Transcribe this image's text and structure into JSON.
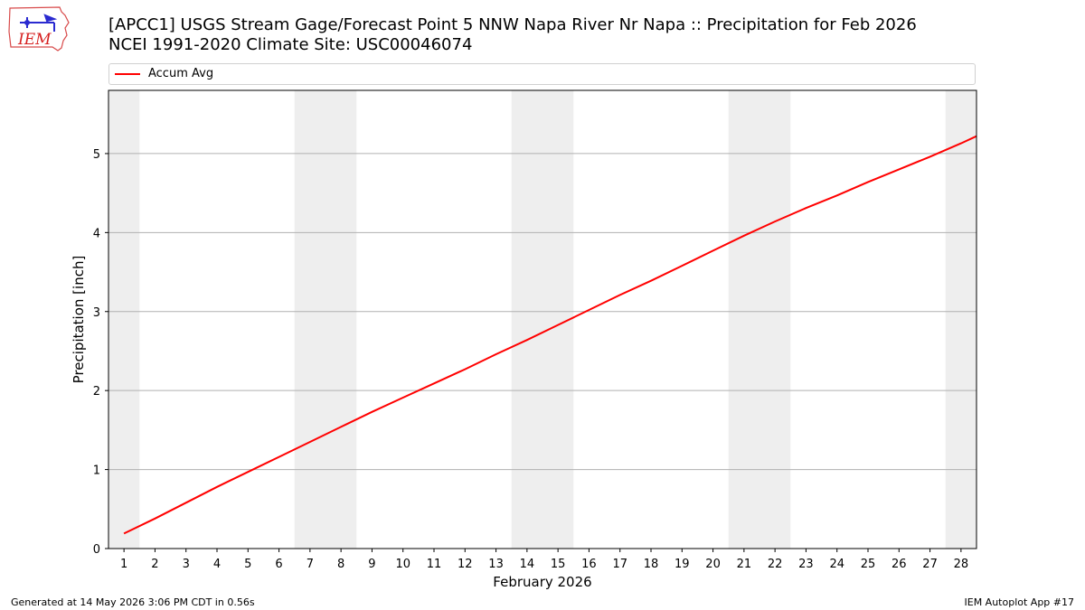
{
  "logo": {
    "text": "IEM",
    "icon": "iowa-state-weather-station-logo-icon"
  },
  "title_line1": "[APCC1] USGS Stream Gage/Forecast Point 5 NNW Napa River Nr Napa :: Precipitation for Feb 2026",
  "title_line2": "NCEI 1991-2020 Climate Site: USC00046074",
  "footer": {
    "left": "Generated at 14 May 2026 3:06 PM CDT in 0.56s",
    "right": "IEM Autoplot App #17"
  },
  "colors": {
    "series": "#ff0000",
    "weekend_band": "#eeeeee",
    "grid": "#b0b0b0"
  },
  "chart_data": {
    "type": "line",
    "xlabel": "February 2026",
    "ylabel": "Precipitation [inch]",
    "xlim": [
      0.5,
      28.5
    ],
    "ylim": [
      0,
      5.8
    ],
    "x_ticks": [
      1,
      2,
      3,
      4,
      5,
      6,
      7,
      8,
      9,
      10,
      11,
      12,
      13,
      14,
      15,
      16,
      17,
      18,
      19,
      20,
      21,
      22,
      23,
      24,
      25,
      26,
      27,
      28
    ],
    "y_ticks": [
      0,
      1,
      2,
      3,
      4,
      5
    ],
    "grid": "horizontal",
    "legend": "top",
    "weekend_bands": [
      [
        0.5,
        1.5
      ],
      [
        6.5,
        8.5
      ],
      [
        13.5,
        15.5
      ],
      [
        20.5,
        22.5
      ],
      [
        27.5,
        28.5
      ]
    ],
    "series": [
      {
        "name": "Accum Avg",
        "x": [
          1,
          2,
          3,
          4,
          5,
          6,
          7,
          8,
          9,
          10,
          11,
          12,
          13,
          14,
          15,
          16,
          17,
          18,
          19,
          20,
          21,
          22,
          23,
          24,
          25,
          26,
          27,
          28,
          28.5
        ],
        "values": [
          0.19,
          0.38,
          0.58,
          0.78,
          0.97,
          1.16,
          1.35,
          1.54,
          1.73,
          1.91,
          2.09,
          2.27,
          2.46,
          2.64,
          2.83,
          3.02,
          3.21,
          3.39,
          3.58,
          3.77,
          3.96,
          4.14,
          4.31,
          4.47,
          4.64,
          4.8,
          4.96,
          5.13,
          5.22
        ]
      }
    ]
  }
}
